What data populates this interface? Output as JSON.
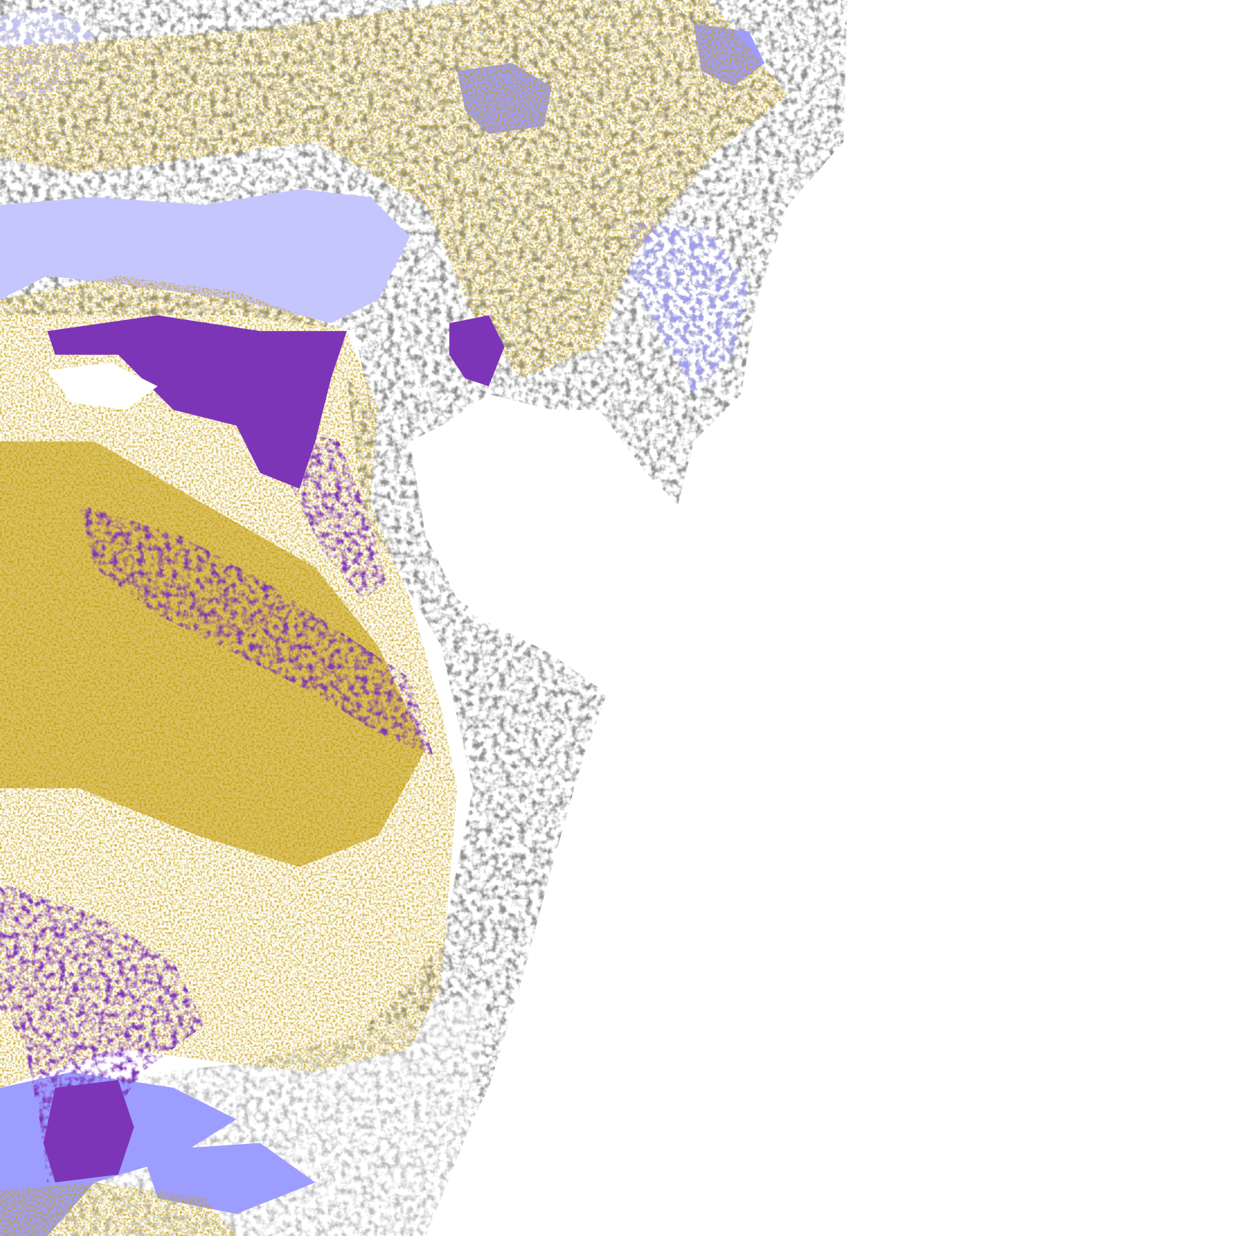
{
  "map": {
    "background": "#ffffff",
    "classes": [
      {
        "key": "gold",
        "color": "#c9a000"
      },
      {
        "key": "purple",
        "color": "#7d35b8"
      },
      {
        "key": "gray",
        "color": "#8e8e8e"
      },
      {
        "key": "light-gray",
        "color": "#bdbdbd"
      },
      {
        "key": "lavender",
        "color": "#c6c6ff"
      },
      {
        "key": "periwinkle",
        "color": "#9d9dff"
      }
    ]
  }
}
